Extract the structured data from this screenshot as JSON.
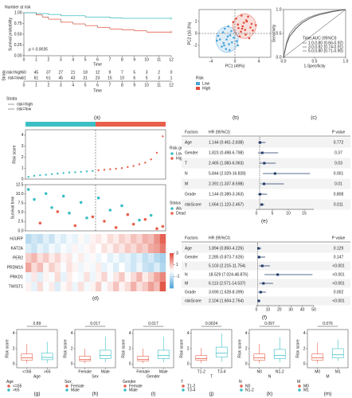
{
  "chart_data": [
    {
      "type": "step",
      "panel": "(a)",
      "title": "Number at risk",
      "xlabel": "Time",
      "ylabel": "Survival probability",
      "annotation": "p = 0.0035",
      "xlim": [
        0,
        12
      ],
      "xticks": [
        0,
        1,
        2,
        3,
        4,
        5,
        6,
        7,
        8,
        9,
        10,
        11,
        12
      ],
      "ylim": [
        0,
        1
      ],
      "yticks": [
        {
          "value": 0,
          "label": "0.00"
        },
        {
          "value": 0.25,
          "label": "0.25"
        },
        {
          "value": 0.5,
          "label": "0.50"
        },
        {
          "value": 0.75,
          "label": "0.75"
        },
        {
          "value": 1,
          "label": "1.00"
        }
      ],
      "series": [
        {
          "name": "risk=high",
          "color": "#e8604c",
          "x": [
            0,
            1,
            1.5,
            2,
            3,
            4,
            5,
            6,
            7,
            8,
            9,
            10,
            12
          ],
          "values": [
            1,
            0.95,
            0.9,
            0.85,
            0.78,
            0.74,
            0.7,
            0.66,
            0.62,
            0.6,
            0.58,
            0.55,
            0.55
          ]
        },
        {
          "name": "risk=low",
          "color": "#3cbfc4",
          "x": [
            0,
            1,
            2,
            3,
            5,
            7,
            8,
            12
          ],
          "values": [
            1,
            0.98,
            0.96,
            0.93,
            0.9,
            0.88,
            0.87,
            0.87
          ]
        }
      ],
      "risk_table": {
        "label": "Strata",
        "counts": [
          [
            60,
            45,
            37,
            27,
            21,
            18,
            12,
            9,
            7,
            5,
            3,
            2,
            0
          ],
          [
            61,
            61,
            61,
            45,
            43,
            31,
            23,
            15,
            10,
            6,
            5,
            3,
            1
          ]
        ]
      },
      "legend_title": "Strata"
    },
    {
      "type": "scatter",
      "panel": "(b)",
      "xlabel": "PC1 (49%)",
      "ylabel": "PC2 (16.3%)",
      "xlim": [
        -6,
        6
      ],
      "xticks": [
        -4,
        0,
        4
      ],
      "ylim": [
        -4,
        4
      ],
      "yticks": [
        -2,
        0,
        2
      ],
      "legend_title": "Risk",
      "series": [
        {
          "name": "Low",
          "color": "#4aa3d8",
          "x": [
            -2.5,
            -1.8,
            -1.2,
            -0.5,
            -2,
            -1.5,
            -0.8,
            -3,
            -1,
            -0.2,
            -1.7,
            -2.2,
            0.3,
            -0.6,
            -1.4,
            -2.8,
            -0.9,
            -1.1,
            0.5,
            -1.9
          ],
          "values": [
            -1,
            -2,
            -0.5,
            -1.5,
            0.2,
            -2.6,
            -0.3,
            -1.2,
            -1.8,
            -0.7,
            0.8,
            -2.2,
            -1.3,
            0.4,
            -1,
            -0.4,
            -2.8,
            1.2,
            -2,
            -1.6
          ]
        },
        {
          "name": "High",
          "color": "#e04b3a",
          "x": [
            0.5,
            1.2,
            2,
            1.8,
            0.2,
            2.6,
            1,
            1.5,
            3,
            0.8,
            2.2,
            1.3,
            -0.3,
            1.7,
            2.8,
            0.6,
            1.1,
            2.4,
            3.5,
            1.9
          ],
          "values": [
            1.5,
            0.8,
            2,
            -0.2,
            2.5,
            1,
            0.3,
            1.8,
            0.5,
            -0.5,
            2.8,
            1.2,
            1.9,
            0.6,
            1.6,
            0.9,
            3,
            -0.8,
            1.4,
            2.2
          ]
        }
      ]
    },
    {
      "type": "line",
      "panel": "(c)",
      "xlabel": "1-Specificity",
      "ylabel": "Sensitivity",
      "xlim": [
        0,
        1
      ],
      "xticks": [
        {
          "value": 0,
          "label": "0.0"
        },
        {
          "value": 0.5,
          "label": "0.5"
        },
        {
          "value": 1,
          "label": "1.0"
        }
      ],
      "ylim": [
        0,
        1
      ],
      "yticks": [
        {
          "value": 0,
          "label": "0.0"
        },
        {
          "value": 0.5,
          "label": "0.5"
        },
        {
          "value": 1,
          "label": "1.0"
        }
      ],
      "legend_title": "Time,AUC (95%CI)",
      "x": [
        0,
        0.05,
        0.1,
        0.2,
        0.3,
        0.4,
        0.5,
        0.6,
        0.8,
        1
      ],
      "series": [
        {
          "name": "1.0,0.80 (0.66-0.92)",
          "color": "#c8c8c8",
          "values": [
            0,
            0.3,
            0.45,
            0.62,
            0.73,
            0.8,
            0.86,
            0.9,
            0.96,
            1
          ]
        },
        {
          "name": "3.0,0.82 (0.74-0.91)",
          "color": "#8c8c8c",
          "values": [
            0,
            0.32,
            0.5,
            0.66,
            0.76,
            0.83,
            0.88,
            0.92,
            0.97,
            1
          ]
        },
        {
          "name": "5.0,0.80 (0.71-0.90)",
          "color": "#555555",
          "values": [
            0,
            0.28,
            0.44,
            0.6,
            0.72,
            0.8,
            0.86,
            0.9,
            0.96,
            1
          ]
        }
      ]
    },
    {
      "type": "risk",
      "panel": "(d)",
      "risk_score": {
        "ylabel": "Risk score",
        "ylim": [
          0,
          4.5
        ],
        "yticks": [
          0,
          1,
          2,
          3,
          4
        ],
        "legend_title": "Risk group",
        "series": [
          {
            "name": "Low",
            "color": "#3cbfc4",
            "values": [
              0.2,
              0.3,
              0.35,
              0.4,
              0.45,
              0.5,
              0.55,
              0.6,
              0.62,
              0.66,
              0.7,
              0.74
            ]
          },
          {
            "name": "High",
            "color": "#e8604c",
            "values": [
              0.8,
              0.85,
              0.9,
              0.95,
              1.0,
              1.1,
              1.2,
              1.35,
              1.5,
              1.8,
              2.4,
              3.9
            ]
          }
        ]
      },
      "survival": {
        "ylabel": "Survival time",
        "ylim": [
          0,
          12.5
        ],
        "yticks": [
          {
            "value": 0,
            "label": "0.0"
          },
          {
            "value": 2.5,
            "label": "2.5"
          },
          {
            "value": 5,
            "label": "5.0"
          },
          {
            "value": 7.5,
            "label": "7.5"
          },
          {
            "value": 10,
            "label": "10.0"
          },
          {
            "value": 12.5,
            "label": "12.5"
          }
        ],
        "legend_title": "Status",
        "series": [
          {
            "name": "Alive",
            "color": "#3cbfc4",
            "x": [
              1,
              2,
              4,
              5,
              7,
              8,
              10,
              11,
              13,
              15,
              17,
              20,
              22
            ],
            "values": [
              11.2,
              8.5,
              10.1,
              6.3,
              9.4,
              4.8,
              7.7,
              3.5,
              8.9,
              5.6,
              6.8,
              2.9,
              4.2
            ]
          },
          {
            "name": "Dead",
            "color": "#e8604c",
            "x": [
              3,
              6,
              9,
              12,
              14,
              16,
              18,
              19,
              21,
              23,
              24
            ],
            "values": [
              2.1,
              5.2,
              1.4,
              3.8,
              2.6,
              0.9,
              4.4,
              1.8,
              3.1,
              0.6,
              1.2
            ]
          }
        ]
      },
      "heatmap": {
        "genes": [
          "HJURP",
          "KAT2A",
          "PER2",
          "PRDM16",
          "PRKD1",
          "TWIST1"
        ],
        "clim": [
          -3,
          3
        ],
        "scale_ticks": [
          3,
          1,
          -1
        ],
        "values": [
          [
            -1.2,
            -0.8,
            -1,
            -0.5,
            -0.9,
            -0.3,
            -0.6,
            -0.2,
            -0.4,
            0.1,
            -0.3,
            0.2,
            0.4,
            0.1,
            0.6,
            0.3,
            0.8,
            0.5,
            1,
            0.7,
            1.3,
            1.1,
            1.8,
            2.6
          ],
          [
            -0.6,
            -0.9,
            -0.4,
            -0.7,
            -0.2,
            -0.5,
            -0.1,
            -0.3,
            0.2,
            -0.2,
            0.1,
            0.3,
            0,
            0.5,
            0.2,
            0.7,
            0.4,
            0.9,
            0.6,
            1.1,
            0.8,
            1.4,
            1.6,
            2.2
          ],
          [
            0.8,
            1.2,
            0.5,
            0.9,
            0.3,
            0.7,
            0.2,
            0.4,
            -0.1,
            0.3,
            -0.2,
            0.1,
            -0.3,
            0,
            -0.5,
            -0.2,
            -0.6,
            -0.4,
            -0.8,
            -0.5,
            -1,
            -0.7,
            -1.2,
            -1.5
          ],
          [
            1.5,
            0.6,
            1.1,
            0.2,
            0.8,
            0.4,
            -0.1,
            0.5,
            0.2,
            -0.3,
            0.1,
            -0.2,
            0.3,
            -0.4,
            -0.1,
            -0.6,
            0,
            -0.5,
            -0.8,
            -0.3,
            -0.9,
            -1.1,
            -0.6,
            -1.3
          ],
          [
            -0.3,
            0.4,
            -0.5,
            0.2,
            -0.1,
            0.6,
            -0.4,
            0.3,
            0,
            -0.2,
            0.5,
            -0.3,
            0.2,
            0.7,
            -0.1,
            0.4,
            0.9,
            0.1,
            0.6,
            1.2,
            0.3,
            0.8,
            1.5,
            2
          ],
          [
            0.2,
            -0.4,
            0.6,
            -0.1,
            0.3,
            -0.6,
            0.1,
            0.4,
            -0.3,
            0.5,
            -0.2,
            0.2,
            0.8,
            -0.1,
            0.4,
            1,
            0.2,
            0.6,
            1.3,
            0.5,
            0.9,
            1.6,
            1.1,
            2.8
          ]
        ]
      }
    },
    {
      "type": "forest",
      "panel": "(e)",
      "headers": [
        "Factors",
        "HR (95%CI)",
        "P value"
      ],
      "categories": [
        "Age",
        "Gender",
        "T",
        "N",
        "M",
        "Grade",
        "riskScore"
      ],
      "values": [
        1.144,
        1.823,
        2.465,
        5.844,
        2.391,
        1.144,
        1.664
      ],
      "lower": [
        0.461,
        0.498,
        1.083,
        2.029,
        1.337,
        0.389,
        1.123
      ],
      "upper": [
        2.838,
        6.798,
        6.063,
        16.828,
        8.598,
        3.363,
        2.467
      ],
      "value_labels": [
        "1.144 (0.461-2.838)",
        "1.823 (0.498-6.798)",
        "2.465 (1.083-6.063)",
        "5.844 (2.029-16.828)",
        "2.391 (1.337-8.598)",
        "1.144 (0.389-3.363)",
        "1.664 (1.123-2.467)"
      ],
      "p_values": [
        "0.772",
        "0.37",
        "0.03",
        "0.001",
        "0.01",
        "0.808",
        "0.011"
      ],
      "xlim": [
        0,
        18
      ],
      "xticks": [
        0,
        5,
        10,
        15
      ],
      "color": "#1f3a68"
    },
    {
      "type": "forest",
      "panel": "(f)",
      "headers": [
        "Factors",
        "HR (95%CI)",
        "P value"
      ],
      "categories": [
        "Age",
        "Gender",
        "T",
        "N",
        "M",
        "Grade",
        "riskScore"
      ],
      "values": [
        1.894,
        2.285,
        5.103,
        18.529,
        6.113,
        3.69,
        2.104
      ],
      "lower": [
        0.85,
        0.873,
        2.215,
        7.024,
        2.571,
        1.628,
        1.604
      ],
      "upper": [
        4.226,
        7.626,
        11.754,
        48.876,
        14.537,
        8.399,
        2.764
      ],
      "value_labels": [
        "1.894 (0.850-4.226)",
        "2.285 (0.873-7.626)",
        "5.103 (2.215-11.754)",
        "18.529 (7.024-48.876)",
        "6.113 (2.571-14.537)",
        "3.690 (1.628-8.399)",
        "2.104 (1.604-2.764)"
      ],
      "p_values": [
        "0.129",
        "0.147",
        "<0.001",
        "<0.001",
        "<0.001",
        "0.002",
        "<0.001"
      ],
      "xlim": [
        0,
        50
      ],
      "xticks": [
        0,
        10,
        20,
        30,
        40,
        50
      ],
      "color": "#1f3a68"
    },
    {
      "type": "box",
      "panel": "(g)",
      "title": "0.89",
      "xlabel": "Age",
      "ylabel": "Risk score",
      "categories": [
        "<=65",
        ">65"
      ],
      "colors": [
        "#e8604c",
        "#3cbfc4"
      ],
      "min": [
        0.1,
        0.1
      ],
      "q1": [
        0.5,
        0.55
      ],
      "median": [
        0.8,
        0.85
      ],
      "q3": [
        1.3,
        1.4
      ],
      "max": [
        2.6,
        2.9
      ],
      "ylim": [
        -0.5,
        4.5
      ],
      "yticks": [
        0,
        2,
        4
      ]
    },
    {
      "type": "box",
      "panel": "(h)",
      "title": "0.017",
      "xlabel": "Sex",
      "ylabel": "Risk score",
      "categories": [
        "Female",
        "Male"
      ],
      "colors": [
        "#e8604c",
        "#3cbfc4"
      ],
      "min": [
        0.1,
        0.2
      ],
      "q1": [
        0.4,
        0.7
      ],
      "median": [
        0.6,
        1.1
      ],
      "q3": [
        1,
        1.8
      ],
      "max": [
        2,
        3.6
      ],
      "ylim": [
        -0.5,
        4.5
      ],
      "yticks": [
        0,
        2,
        4
      ]
    },
    {
      "type": "box",
      "panel": "(i)",
      "title": "0.017",
      "xlabel": "Gender",
      "ylabel": "Risk score",
      "categories": [
        "Female",
        "Male"
      ],
      "colors": [
        "#e8604c",
        "#3cbfc4"
      ],
      "min": [
        0.1,
        0.2
      ],
      "q1": [
        0.4,
        0.7
      ],
      "median": [
        0.6,
        1.1
      ],
      "q3": [
        1,
        1.8
      ],
      "max": [
        2,
        3.6
      ],
      "ylim": [
        -0.5,
        4.5
      ],
      "yticks": [
        0,
        2,
        4
      ]
    },
    {
      "type": "box",
      "panel": "(j)",
      "title": "0.0024",
      "xlabel": "T",
      "ylabel": "Risk score",
      "categories": [
        "T1-2",
        "T3-4"
      ],
      "colors": [
        "#e8604c",
        "#3cbfc4"
      ],
      "min": [
        0.1,
        0.3
      ],
      "q1": [
        0.5,
        0.9
      ],
      "median": [
        0.7,
        1.4
      ],
      "q3": [
        1.1,
        2.2
      ],
      "max": [
        2.1,
        4
      ],
      "ylim": [
        -0.5,
        4.5
      ],
      "yticks": [
        0,
        2,
        4
      ]
    },
    {
      "type": "box",
      "panel": "(k)",
      "title": "0.097",
      "xlabel": "N",
      "ylabel": "Risk score",
      "categories": [
        "N0",
        "N1-2"
      ],
      "colors": [
        "#e8604c",
        "#3cbfc4"
      ],
      "min": [
        0.1,
        0.2
      ],
      "q1": [
        0.5,
        0.7
      ],
      "median": [
        0.8,
        1.1
      ],
      "q3": [
        1.3,
        1.9
      ],
      "max": [
        2.6,
        3.5
      ],
      "ylim": [
        -0.5,
        4.5
      ],
      "yticks": [
        0,
        2,
        4
      ]
    },
    {
      "type": "box",
      "panel": "(m)",
      "title": "0.076",
      "xlabel": "M",
      "ylabel": "Risk score",
      "categories": [
        "M0",
        "M1"
      ],
      "colors": [
        "#e8604c",
        "#3cbfc4"
      ],
      "min": [
        0.1,
        0.4
      ],
      "q1": [
        0.5,
        0.8
      ],
      "median": [
        0.8,
        1.2
      ],
      "q3": [
        1.3,
        2
      ],
      "max": [
        2.8,
        3.2
      ],
      "ylim": [
        -0.5,
        4.5
      ],
      "yticks": [
        0,
        2,
        4
      ]
    }
  ]
}
